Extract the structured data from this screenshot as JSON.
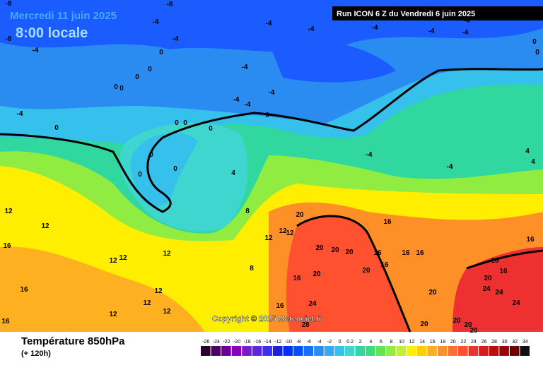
{
  "header": {
    "date": "Mercredi 11 juin 2025",
    "time": "8:00 locale",
    "run": "Run ICON 6 Z du Vendredi 6 juin 2025"
  },
  "map": {
    "copyright": "Copyright © 2025 Meteociel.fr",
    "contour_labels": [
      "-8",
      "-8",
      "-8",
      "-4",
      "-4",
      "-4",
      "-4",
      "-4",
      "-4",
      "-4",
      "-4",
      "-4",
      "-4",
      "-4",
      "-4",
      "-4",
      "-4",
      "-4",
      "-4",
      "4",
      "4",
      "0",
      "0",
      "0",
      "0",
      "0",
      "0",
      "0",
      "0",
      "0",
      "0",
      "0",
      "0",
      "0",
      "0",
      "0",
      "4",
      "8",
      "8",
      "12",
      "12",
      "12",
      "12",
      "12",
      "12",
      "12",
      "12",
      "12",
      "12",
      "12",
      "12",
      "16",
      "16",
      "16",
      "20",
      "16",
      "16",
      "20",
      "20",
      "20",
      "16",
      "16",
      "16",
      "16",
      "16",
      "16",
      "20",
      "20",
      "16",
      "20",
      "24",
      "24",
      "24",
      "20",
      "24",
      "16",
      "28",
      "20",
      "20",
      "20",
      "20"
    ]
  },
  "footer": {
    "title": "Température 850hPa",
    "subtitle": "(+ 120h)"
  },
  "scale": {
    "ticks": [
      -26,
      -24,
      -22,
      -20,
      -18,
      -16,
      -14,
      -12,
      -10,
      -8,
      -6,
      -4,
      -2,
      0,
      0.2,
      2,
      4,
      6,
      8,
      10,
      12,
      14,
      16,
      18,
      20,
      22,
      24,
      26,
      28,
      30,
      32,
      34
    ],
    "colors": [
      "#2a0030",
      "#4a0066",
      "#6a0099",
      "#8a00bb",
      "#7a1ad0",
      "#5a28e0",
      "#3a30f0",
      "#1c20d8",
      "#0030ff",
      "#0050ff",
      "#1870ff",
      "#2a8cf0",
      "#38a8f0",
      "#36c0ec",
      "#40d6d0",
      "#30d8a0",
      "#3cdc78",
      "#60e458",
      "#90ec40",
      "#c0f030",
      "#ffee00",
      "#ffd000",
      "#ffb020",
      "#ff9028",
      "#ff7030",
      "#ff5030",
      "#ee3030",
      "#d41e1e",
      "#b81010",
      "#960808",
      "#700000",
      "#101010"
    ]
  }
}
